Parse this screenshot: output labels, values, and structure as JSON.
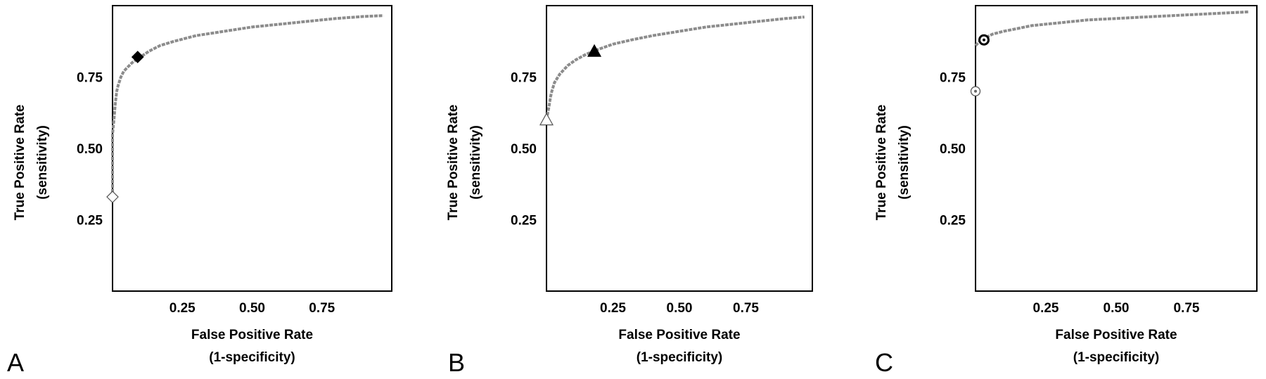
{
  "curve_color": "#8c8c8c",
  "chart_data": [
    {
      "panel": "A",
      "type": "line",
      "xlabel": [
        "False Positive Rate",
        "(1-specificity)"
      ],
      "ylabel": [
        "True Positive Rate",
        "(sensitivity)"
      ],
      "xlim": [
        0,
        1
      ],
      "ylim": [
        0,
        1
      ],
      "xticks": [
        "0.25",
        "0.50",
        "0.75"
      ],
      "yticks": [
        "0.25",
        "0.50",
        "0.75"
      ],
      "grid": false,
      "x": [
        0,
        0,
        0,
        0.005,
        0.01,
        0.015,
        0.02,
        0.03,
        0.04,
        0.05,
        0.07,
        0.1,
        0.13,
        0.17,
        0.22,
        0.3,
        0.4,
        0.5,
        0.6,
        0.7,
        0.8,
        0.9,
        0.97
      ],
      "y": [
        0.33,
        0.45,
        0.55,
        0.6,
        0.66,
        0.7,
        0.72,
        0.75,
        0.77,
        0.78,
        0.8,
        0.82,
        0.84,
        0.86,
        0.875,
        0.895,
        0.91,
        0.925,
        0.935,
        0.945,
        0.955,
        0.962,
        0.965
      ],
      "markers": [
        {
          "shape": "diamond",
          "filled": false,
          "x": 0.0,
          "y": 0.33
        },
        {
          "shape": "diamond",
          "filled": true,
          "x": 0.09,
          "y": 0.82
        }
      ]
    },
    {
      "panel": "B",
      "type": "line",
      "xlabel": [
        "False Positive Rate",
        "(1-specificity)"
      ],
      "ylabel": [
        "True Positive Rate",
        "(sensitivity)"
      ],
      "xlim": [
        0,
        1
      ],
      "ylim": [
        0,
        1
      ],
      "xticks": [
        "0.25",
        "0.50",
        "0.75"
      ],
      "yticks": [
        "0.25",
        "0.50",
        "0.75"
      ],
      "grid": false,
      "x": [
        0.0,
        0.01,
        0.015,
        0.02,
        0.03,
        0.05,
        0.08,
        0.11,
        0.15,
        0.19,
        0.25,
        0.32,
        0.4,
        0.5,
        0.6,
        0.7,
        0.8,
        0.9,
        0.97
      ],
      "y": [
        0.6,
        0.65,
        0.68,
        0.7,
        0.73,
        0.76,
        0.79,
        0.81,
        0.83,
        0.845,
        0.865,
        0.88,
        0.895,
        0.91,
        0.925,
        0.935,
        0.945,
        0.955,
        0.96
      ],
      "markers": [
        {
          "shape": "triangle",
          "filled": false,
          "x": 0.0,
          "y": 0.6
        },
        {
          "shape": "triangle",
          "filled": true,
          "x": 0.18,
          "y": 0.84
        }
      ]
    },
    {
      "panel": "C",
      "type": "line",
      "xlabel": [
        "False Positive Rate",
        "(1-specificity)"
      ],
      "ylabel": [
        "True Positive Rate",
        "(sensitivity)"
      ],
      "xlim": [
        0,
        1
      ],
      "ylim": [
        0,
        1
      ],
      "xticks": [
        "0.25",
        "0.50",
        "0.75"
      ],
      "yticks": [
        "0.25",
        "0.50",
        "0.75"
      ],
      "grid": false,
      "x": [
        0.0,
        0.01,
        0.02,
        0.04,
        0.06,
        0.1,
        0.15,
        0.2,
        0.3,
        0.4,
        0.5,
        0.6,
        0.7,
        0.8,
        0.9,
        0.97
      ],
      "y": [
        0.86,
        0.87,
        0.88,
        0.89,
        0.9,
        0.91,
        0.92,
        0.93,
        0.94,
        0.95,
        0.955,
        0.96,
        0.965,
        0.97,
        0.975,
        0.978
      ],
      "markers": [
        {
          "shape": "circle-dot",
          "filled": false,
          "x": 0.0,
          "y": 0.7
        },
        {
          "shape": "circle-dot",
          "filled": true,
          "x": 0.03,
          "y": 0.88
        }
      ]
    }
  ]
}
